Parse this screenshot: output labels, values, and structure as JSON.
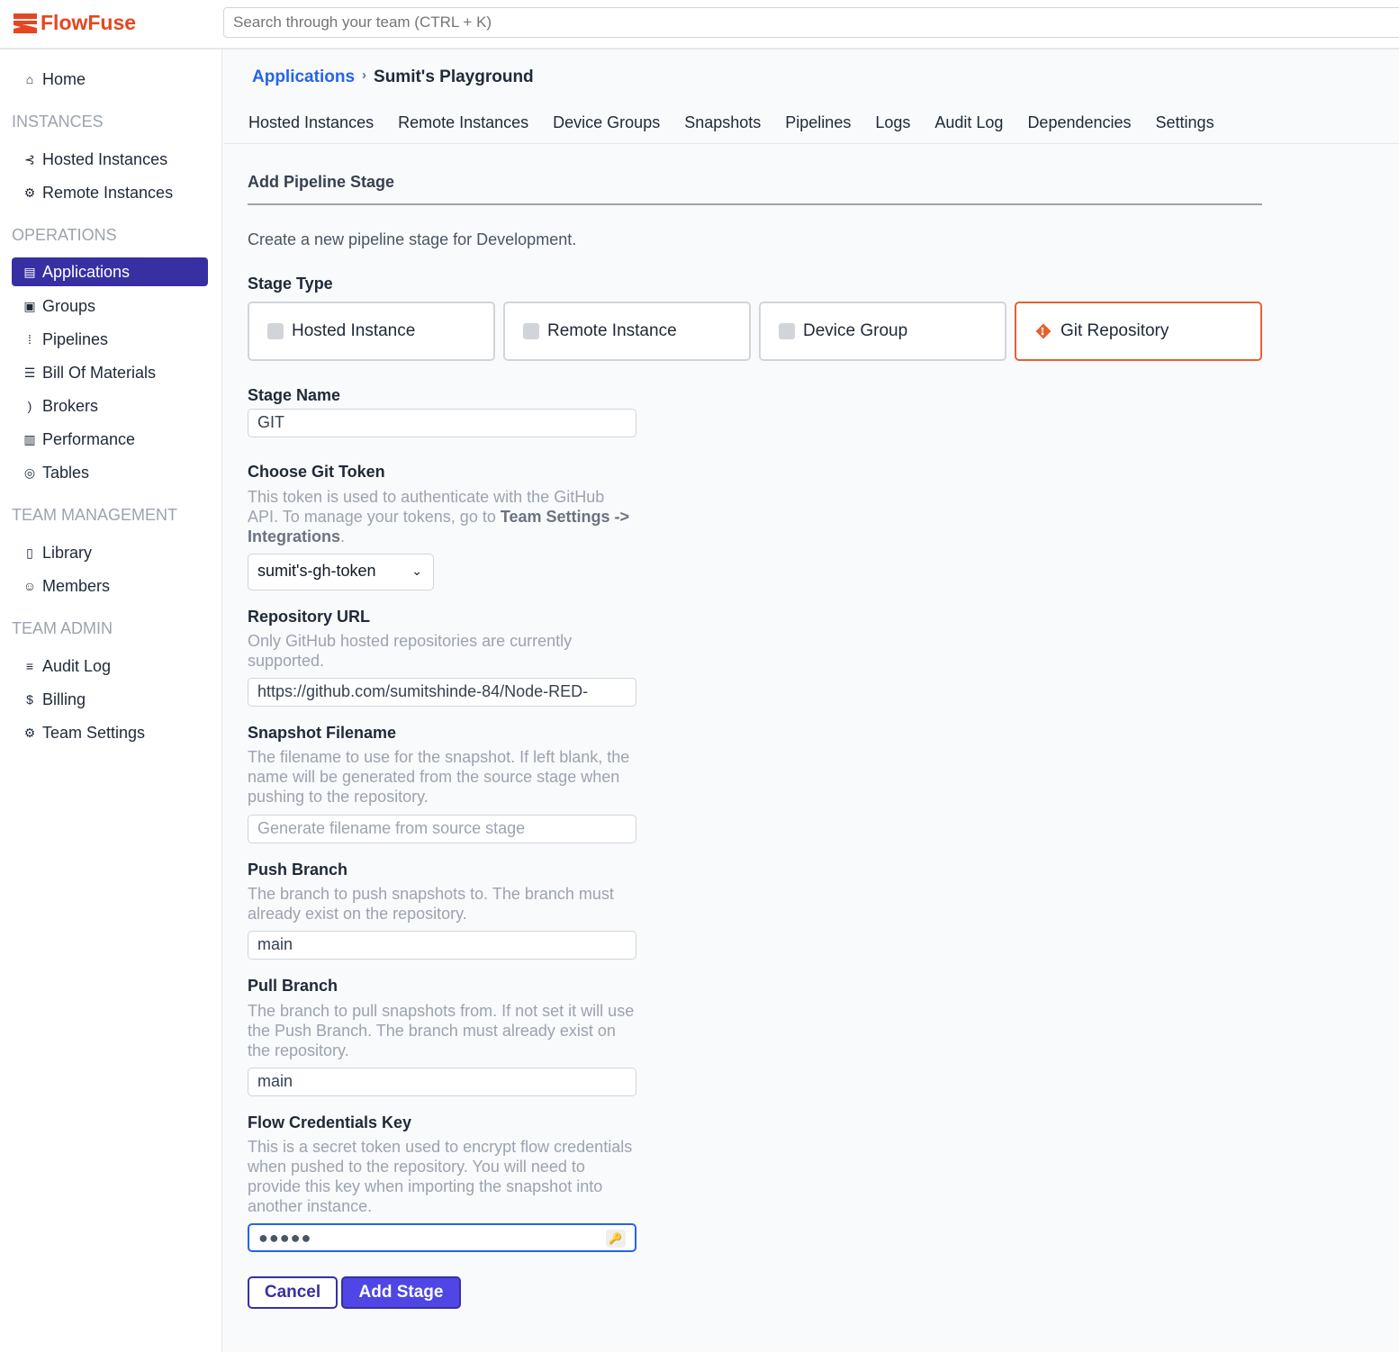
{
  "header": {
    "logo": "FlowFuse",
    "search_placeholder": "Search through your team (CTRL + K)"
  },
  "sidebar": {
    "home": "Home",
    "sections": [
      "INSTANCES",
      "OPERATIONS",
      "TEAM MANAGEMENT",
      "TEAM ADMIN"
    ],
    "items": [
      {
        "label": "Hosted Instances",
        "icon": "hosted-icon"
      },
      {
        "label": "Remote Instances",
        "icon": "chip-icon"
      },
      {
        "label": "Applications",
        "icon": "applications-icon",
        "active": true
      },
      {
        "label": "Groups",
        "icon": "groups-icon"
      },
      {
        "label": "Pipelines",
        "icon": "pipelines-icon"
      },
      {
        "label": "Bill Of Materials",
        "icon": "table-icon"
      },
      {
        "label": "Brokers",
        "icon": "rss-icon"
      },
      {
        "label": "Performance",
        "icon": "chart-icon"
      },
      {
        "label": "Tables",
        "icon": "database-icon"
      },
      {
        "label": "Library",
        "icon": "book-icon"
      },
      {
        "label": "Members",
        "icon": "users-icon"
      },
      {
        "label": "Audit Log",
        "icon": "list-icon"
      },
      {
        "label": "Billing",
        "icon": "dollar-icon"
      },
      {
        "label": "Team Settings",
        "icon": "gear-icon"
      }
    ]
  },
  "breadcrumb": {
    "parent": "Applications",
    "current": "Sumit's Playground"
  },
  "tabs": [
    "Hosted Instances",
    "Remote Instances",
    "Device Groups",
    "Snapshots",
    "Pipelines",
    "Logs",
    "Audit Log",
    "Dependencies",
    "Settings"
  ],
  "form": {
    "title": "Add Pipeline Stage",
    "intro": "Create a new pipeline stage for Development.",
    "stage_type_label": "Stage Type",
    "stage_types": [
      "Hosted Instance",
      "Remote Instance",
      "Device Group",
      "Git Repository"
    ],
    "selected_type": "Git Repository",
    "stage_name_label": "Stage Name",
    "stage_name": "GIT",
    "token_label": "Choose Git Token",
    "token_hint_1": "This token is used to authenticate with the GitHub API. To manage your tokens, go to ",
    "token_hint_bold": "Team Settings -> Integrations",
    "token_hint_2": ".",
    "token_value": "sumit's-gh-token",
    "repo_label": "Repository URL",
    "repo_hint": "Only GitHub hosted repositories are currently supported.",
    "repo_value": "https://github.com/sumitshinde-84/Node-RED-",
    "snap_label": "Snapshot Filename",
    "snap_hint": "The filename to use for the snapshot. If left blank, the name will be generated from the source stage when pushing to the repository.",
    "snap_placeholder": "Generate filename from source stage",
    "push_label": "Push Branch",
    "push_hint": "The branch to push snapshots to. The branch must already exist on the repository.",
    "push_value": "main",
    "pull_label": "Pull Branch",
    "pull_hint": "The branch to pull snapshots from. If not set it will use the Push Branch. The branch must already exist on the repository.",
    "pull_value": "main",
    "cred_label": "Flow Credentials Key",
    "cred_hint": "This is a secret token used to encrypt flow credentials when pushed to the repository. You will need to provide this key when importing the snapshot into another instance.",
    "cred_value": "●●●●●",
    "cancel": "Cancel",
    "submit": "Add Stage"
  },
  "colors": {
    "accent": "#3730a3",
    "primary": "#4f46e5",
    "brand": "#e5461f",
    "link": "#2563eb",
    "selected_border": "#e5612f"
  }
}
